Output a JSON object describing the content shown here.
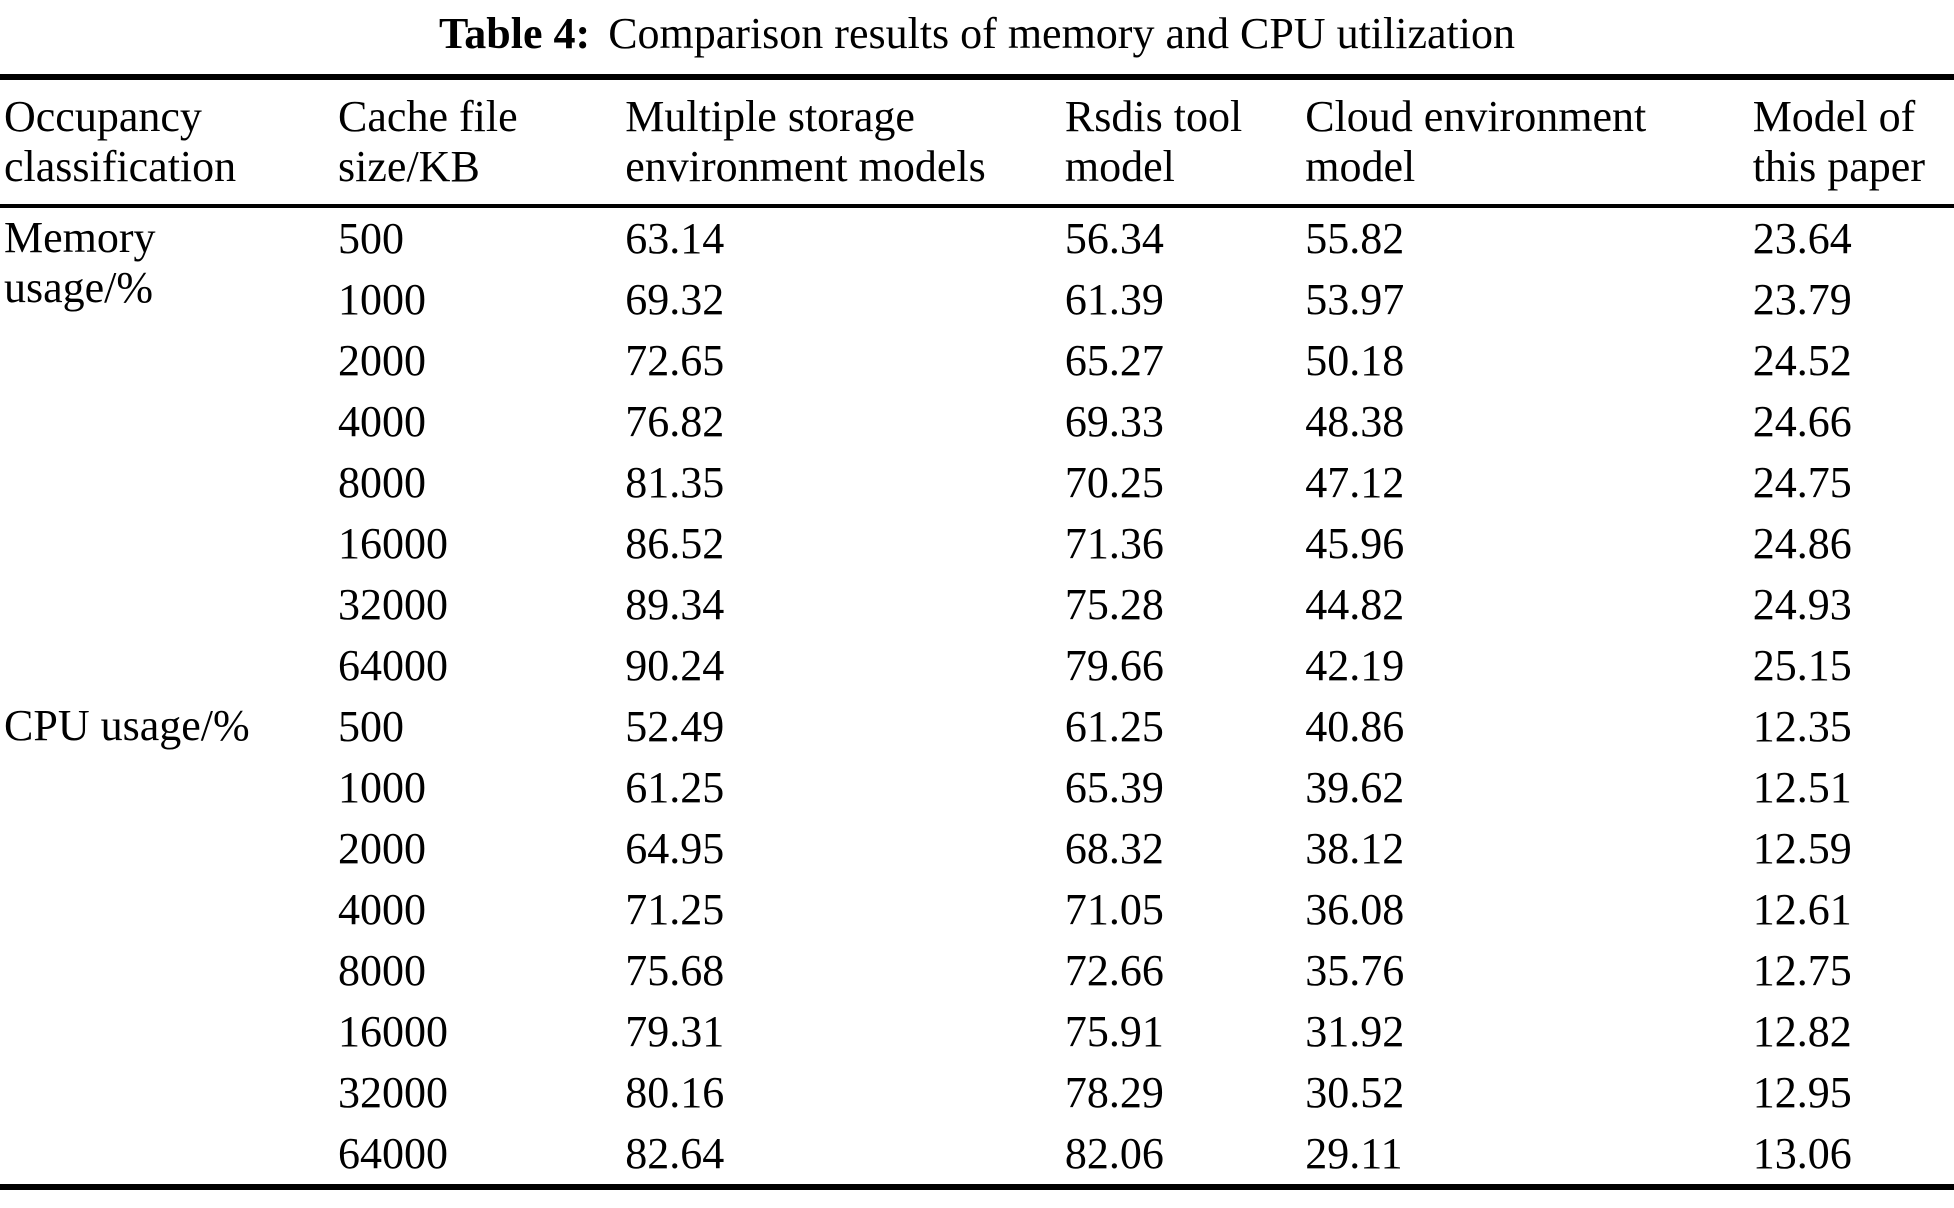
{
  "page": {
    "background": "#ffffff",
    "text_color": "#000000",
    "rule_color": "#000000"
  },
  "title": {
    "label": "Table 4:",
    "text": "Comparison results of memory and CPU utilization"
  },
  "table": {
    "columns": [
      {
        "line1": "Occupancy",
        "line2": "classification"
      },
      {
        "line1": "Cache file",
        "line2": "size/KB"
      },
      {
        "line1": "Multiple storage",
        "line2": "environment models"
      },
      {
        "line1": "Rsdis tool",
        "line2": "model"
      },
      {
        "line1": "Cloud environment",
        "line2": "model"
      },
      {
        "line1": "Model of",
        "line2": "this paper"
      }
    ],
    "sections": [
      {
        "label_lines": [
          "Memory",
          "usage/%"
        ],
        "rows": [
          [
            "500",
            "63.14",
            "56.34",
            "55.82",
            "23.64"
          ],
          [
            "1000",
            "69.32",
            "61.39",
            "53.97",
            "23.79"
          ],
          [
            "2000",
            "72.65",
            "65.27",
            "50.18",
            "24.52"
          ],
          [
            "4000",
            "76.82",
            "69.33",
            "48.38",
            "24.66"
          ],
          [
            "8000",
            "81.35",
            "70.25",
            "47.12",
            "24.75"
          ],
          [
            "16000",
            "86.52",
            "71.36",
            "45.96",
            "24.86"
          ],
          [
            "32000",
            "89.34",
            "75.28",
            "44.82",
            "24.93"
          ],
          [
            "64000",
            "90.24",
            "79.66",
            "42.19",
            "25.15"
          ]
        ]
      },
      {
        "label_lines": [
          "CPU usage/%"
        ],
        "rows": [
          [
            "500",
            "52.49",
            "61.25",
            "40.86",
            "12.35"
          ],
          [
            "1000",
            "61.25",
            "65.39",
            "39.62",
            "12.51"
          ],
          [
            "2000",
            "64.95",
            "68.32",
            "38.12",
            "12.59"
          ],
          [
            "4000",
            "71.25",
            "71.05",
            "36.08",
            "12.61"
          ],
          [
            "8000",
            "75.68",
            "72.66",
            "35.76",
            "12.75"
          ],
          [
            "16000",
            "79.31",
            "75.91",
            "31.92",
            "12.82"
          ],
          [
            "32000",
            "80.16",
            "78.29",
            "30.52",
            "12.95"
          ],
          [
            "64000",
            "82.64",
            "82.06",
            "29.11",
            "13.06"
          ]
        ]
      }
    ]
  }
}
